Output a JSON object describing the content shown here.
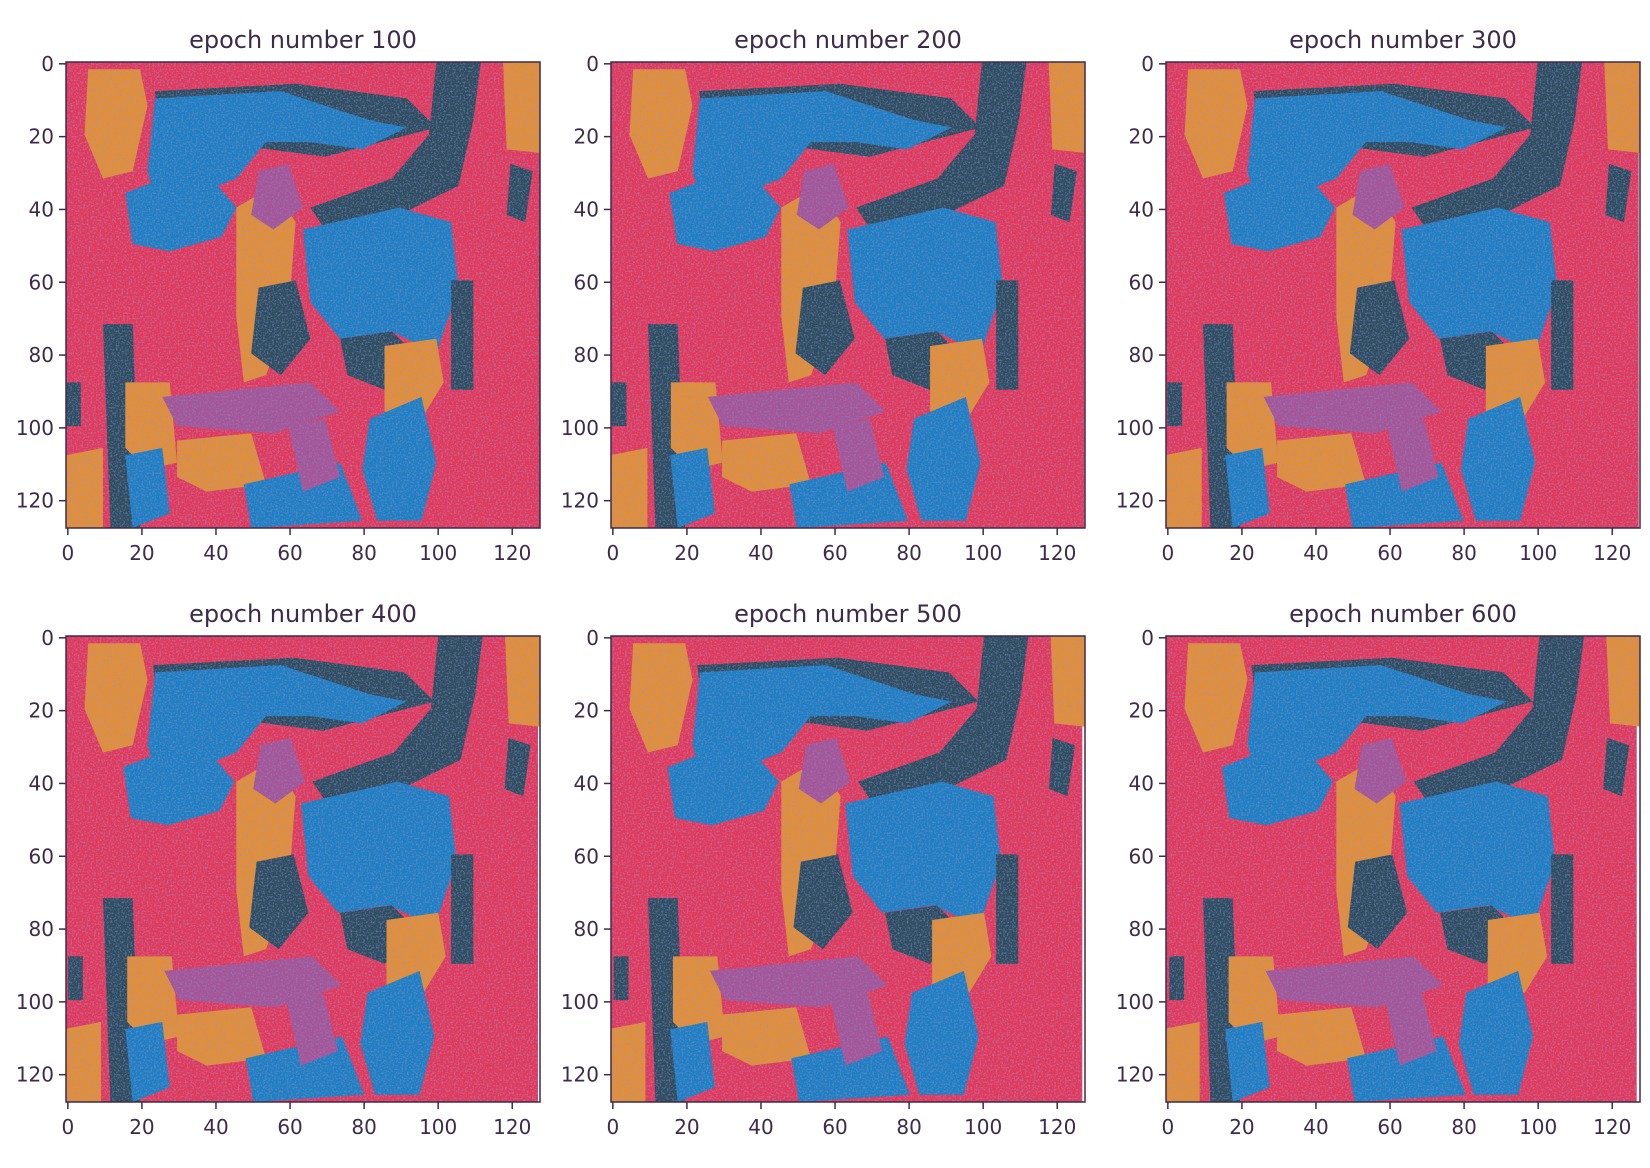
{
  "figure": {
    "panel_count": 6,
    "layout": "2 rows x 3 columns"
  },
  "colors": {
    "red": "#e2385a",
    "orange": "#e3902a",
    "blue": "#1f80c4",
    "dark_teal": "#2e4e5e",
    "purple": "#a65598",
    "text": "#3d2b4a",
    "axis": "#3d2b4a"
  },
  "chart_data": [
    {
      "type": "heatmap",
      "title": "epoch number 100",
      "xlim": [
        0,
        127
      ],
      "ylim": [
        127,
        0
      ],
      "xticks": [
        "0",
        "20",
        "40",
        "60",
        "80",
        "100",
        "120"
      ],
      "yticks": [
        "0",
        "20",
        "40",
        "60",
        "80",
        "100",
        "120"
      ],
      "image": "128x128 stylized painting reconstruction (red, orange, blue, dark teal, purple)"
    },
    {
      "type": "heatmap",
      "title": "epoch number 200",
      "xlim": [
        0,
        127
      ],
      "ylim": [
        127,
        0
      ],
      "xticks": [
        "0",
        "20",
        "40",
        "60",
        "80",
        "100",
        "120"
      ],
      "yticks": [
        "0",
        "20",
        "40",
        "60",
        "80",
        "100",
        "120"
      ],
      "image": "128x128 stylized painting reconstruction (red, orange, blue, dark teal, purple)"
    },
    {
      "type": "heatmap",
      "title": "epoch number 300",
      "xlim": [
        0,
        127
      ],
      "ylim": [
        127,
        0
      ],
      "xticks": [
        "0",
        "20",
        "40",
        "60",
        "80",
        "100",
        "120"
      ],
      "yticks": [
        "0",
        "20",
        "40",
        "60",
        "80",
        "100",
        "120"
      ],
      "image": "128x128 stylized painting reconstruction (red, orange, blue, dark teal, purple)"
    },
    {
      "type": "heatmap",
      "title": "epoch number 400",
      "xlim": [
        0,
        127
      ],
      "ylim": [
        127,
        0
      ],
      "xticks": [
        "0",
        "20",
        "40",
        "60",
        "80",
        "100",
        "120"
      ],
      "yticks": [
        "0",
        "20",
        "40",
        "60",
        "80",
        "100",
        "120"
      ],
      "image": "128x128 stylized painting reconstruction (red, orange, blue, dark teal, purple)"
    },
    {
      "type": "heatmap",
      "title": "epoch number 500",
      "xlim": [
        0,
        127
      ],
      "ylim": [
        127,
        0
      ],
      "xticks": [
        "0",
        "20",
        "40",
        "60",
        "80",
        "100",
        "120"
      ],
      "yticks": [
        "0",
        "20",
        "40",
        "60",
        "80",
        "100",
        "120"
      ],
      "image": "128x128 stylized painting reconstruction (red, orange, blue, dark teal, purple)"
    },
    {
      "type": "heatmap",
      "title": "epoch number 600",
      "xlim": [
        0,
        127
      ],
      "ylim": [
        127,
        0
      ],
      "xticks": [
        "0",
        "20",
        "40",
        "60",
        "80",
        "100",
        "120"
      ],
      "yticks": [
        "0",
        "20",
        "40",
        "60",
        "80",
        "100",
        "120"
      ],
      "image": "128x128 stylized painting reconstruction (red, orange, blue, dark teal, purple)"
    }
  ]
}
